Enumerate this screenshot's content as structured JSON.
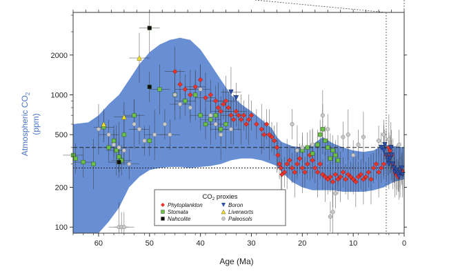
{
  "chart_data": {
    "type": "scatter",
    "title": "",
    "xlabel": "Age (Ma)",
    "ylabel_line1": "Atmospheric CO",
    "ylabel_sub": "2",
    "ylabel_line2": "(ppm)",
    "x_axis_reversed": true,
    "y_scale": "log",
    "xlim": [
      65,
      0
    ],
    "ylim": [
      90,
      4200
    ],
    "x_ticks": [
      {
        "value": 60,
        "label": "60"
      },
      {
        "value": 50,
        "label": "50"
      },
      {
        "value": 40,
        "label": "40"
      },
      {
        "value": 30,
        "label": "30"
      },
      {
        "value": 20,
        "label": "20"
      },
      {
        "value": 10,
        "label": "10"
      },
      {
        "value": 0,
        "label": "0"
      }
    ],
    "y_ticks": [
      {
        "value": 100,
        "label": "100"
      },
      {
        "value": 200,
        "label": "200"
      },
      {
        "value": 500,
        "label": "500"
      },
      {
        "value": 1000,
        "label": "1000"
      },
      {
        "value": 2000,
        "label": "2000"
      }
    ],
    "reference_lines": [
      {
        "value": 400,
        "style": "dashed"
      },
      {
        "value": 280,
        "style": "dotted"
      }
    ],
    "envelope": {
      "x": [
        65,
        62,
        60,
        58,
        56,
        54,
        52,
        50,
        48,
        46,
        44,
        42,
        40,
        38,
        36,
        34,
        32,
        30,
        28,
        26,
        25,
        24,
        22,
        20,
        18,
        16,
        14,
        12,
        10,
        8,
        6,
        4,
        2,
        0
      ],
      "upper": [
        600,
        620,
        700,
        850,
        1000,
        1300,
        1700,
        2100,
        2400,
        2600,
        2700,
        2600,
        2200,
        1700,
        1300,
        1000,
        850,
        750,
        650,
        560,
        480,
        440,
        410,
        400,
        420,
        480,
        430,
        400,
        380,
        370,
        380,
        420,
        410,
        400
      ],
      "lower": [
        90,
        90,
        90,
        110,
        140,
        200,
        240,
        270,
        280,
        285,
        285,
        280,
        285,
        290,
        300,
        320,
        330,
        330,
        320,
        300,
        290,
        260,
        220,
        200,
        190,
        190,
        190,
        185,
        185,
        185,
        190,
        200,
        220,
        230
      ]
    },
    "legend": {
      "title_main": "CO",
      "title_sub": "2",
      "title_rest": " proxies",
      "position": "bottom-center",
      "entries": [
        {
          "label": "Phytoplankton",
          "marker": "diamond",
          "color": "#e8342a"
        },
        {
          "label": "Boron",
          "marker": "triangle-down",
          "color": "#2c4fa8"
        },
        {
          "label": "Stomata",
          "marker": "square",
          "color": "#6cc04a"
        },
        {
          "label": "Liverworts",
          "marker": "triangle-up",
          "color": "#f0e12c"
        },
        {
          "label": "Nahcolite",
          "marker": "square",
          "color": "#111111"
        },
        {
          "label": "Paleosols",
          "marker": "circle",
          "color": "#c8c8c8"
        }
      ]
    },
    "series": [
      {
        "name": "Phytoplankton",
        "marker": "diamond",
        "color": "#e8342a",
        "points": [
          [
            45,
            1500
          ],
          [
            44,
            1200
          ],
          [
            43,
            1100
          ],
          [
            42,
            1000
          ],
          [
            41,
            1150
          ],
          [
            40,
            1300
          ],
          [
            39,
            950
          ],
          [
            38,
            1000
          ],
          [
            37,
            900
          ],
          [
            36.5,
            800
          ],
          [
            36,
            750
          ],
          [
            35.5,
            850
          ],
          [
            35,
            900
          ],
          [
            34.5,
            800
          ],
          [
            34,
            700
          ],
          [
            33.5,
            650
          ],
          [
            33,
            750
          ],
          [
            32.5,
            700
          ],
          [
            32,
            650
          ],
          [
            31.5,
            700
          ],
          [
            31,
            600
          ],
          [
            30.5,
            650
          ],
          [
            30,
            700
          ],
          [
            29,
            600
          ],
          [
            28,
            550
          ],
          [
            27.5,
            500
          ],
          [
            27,
            600
          ],
          [
            26.5,
            500
          ],
          [
            26,
            480
          ],
          [
            25.5,
            450
          ],
          [
            25,
            400
          ],
          [
            24.8,
            350
          ],
          [
            24.5,
            300
          ],
          [
            24.2,
            280
          ],
          [
            24,
            250
          ],
          [
            23.5,
            260
          ],
          [
            23,
            300
          ],
          [
            22.5,
            320
          ],
          [
            22,
            280
          ],
          [
            21.5,
            260
          ],
          [
            21,
            300
          ],
          [
            20.5,
            330
          ],
          [
            20,
            280
          ],
          [
            19.5,
            260
          ],
          [
            19,
            300
          ],
          [
            18.5,
            350
          ],
          [
            18,
            320
          ],
          [
            17.5,
            280
          ],
          [
            17,
            260
          ],
          [
            16.5,
            300
          ],
          [
            16,
            250
          ],
          [
            15.5,
            240
          ],
          [
            15,
            230
          ],
          [
            14.5,
            240
          ],
          [
            14,
            220
          ],
          [
            13.5,
            250
          ],
          [
            13,
            230
          ],
          [
            12.5,
            240
          ],
          [
            12,
            260
          ],
          [
            11.5,
            230
          ],
          [
            11,
            250
          ],
          [
            10.5,
            240
          ],
          [
            10,
            230
          ],
          [
            9.5,
            220
          ],
          [
            9,
            240
          ],
          [
            8.5,
            250
          ],
          [
            8,
            230
          ],
          [
            7.5,
            240
          ],
          [
            7,
            260
          ],
          [
            6.5,
            230
          ],
          [
            6,
            280
          ],
          [
            5.5,
            300
          ],
          [
            5,
            260
          ],
          [
            4.5,
            280
          ],
          [
            4,
            300
          ],
          [
            3.5,
            350
          ],
          [
            3,
            400
          ],
          [
            2.8,
            380
          ],
          [
            2.5,
            350
          ],
          [
            2.2,
            300
          ],
          [
            2,
            280
          ],
          [
            1.8,
            260
          ],
          [
            1.5,
            250
          ],
          [
            1.2,
            240
          ],
          [
            1,
            250
          ],
          [
            0.8,
            260
          ],
          [
            0.5,
            270
          ],
          [
            0.3,
            260
          ]
        ]
      },
      {
        "name": "Boron",
        "marker": "triangle-down",
        "color": "#2c4fa8",
        "points": [
          [
            34,
            1050
          ],
          [
            33,
            950
          ],
          [
            4.5,
            400
          ],
          [
            4,
            380
          ],
          [
            3.5,
            350
          ],
          [
            3.2,
            320
          ],
          [
            3,
            300
          ],
          [
            2.8,
            330
          ],
          [
            2.5,
            350
          ],
          [
            2.2,
            300
          ],
          [
            2,
            280
          ],
          [
            1.8,
            260
          ],
          [
            1.5,
            270
          ],
          [
            1.2,
            250
          ],
          [
            1,
            240
          ],
          [
            0.8,
            260
          ],
          [
            0.5,
            280
          ],
          [
            0.3,
            250
          ],
          [
            2.6,
            400
          ],
          [
            3.8,
            420
          ]
        ]
      },
      {
        "name": "Stomata",
        "marker": "square",
        "color": "#6cc04a",
        "points": [
          [
            65,
            350
          ],
          [
            64.5,
            330
          ],
          [
            63,
            310
          ],
          [
            61,
            300
          ],
          [
            58,
            400
          ],
          [
            57,
            450
          ],
          [
            56.5,
            380
          ],
          [
            56,
            340
          ],
          [
            55.5,
            320
          ],
          [
            55,
            500
          ],
          [
            53,
            700
          ],
          [
            50,
            450
          ],
          [
            48,
            1100
          ],
          [
            45,
            1000
          ],
          [
            43,
            900
          ],
          [
            41,
            1000
          ],
          [
            40,
            700
          ],
          [
            39,
            600
          ],
          [
            38,
            650
          ],
          [
            37,
            700
          ],
          [
            36,
            550
          ],
          [
            35,
            600
          ],
          [
            20,
            380
          ],
          [
            19,
            400
          ],
          [
            18,
            360
          ],
          [
            17,
            420
          ],
          [
            16.5,
            500
          ],
          [
            16,
            550
          ],
          [
            15.5,
            450
          ],
          [
            15,
            400
          ],
          [
            14.5,
            330
          ],
          [
            14,
            380
          ],
          [
            13.5,
            350
          ],
          [
            13,
            320
          ],
          [
            59,
            570
          ]
        ]
      },
      {
        "name": "Liverworts",
        "marker": "triangle-up",
        "color": "#f0e12c",
        "points": [
          [
            52,
            1900
          ],
          [
            59,
            600
          ],
          [
            55,
            680
          ]
        ]
      },
      {
        "name": "Nahcolite",
        "marker": "square",
        "color": "#111111",
        "points": [
          [
            50,
            3200
          ],
          [
            50,
            1150
          ],
          [
            56,
            310
          ]
        ]
      },
      {
        "name": "Paleosols",
        "marker": "circle",
        "color": "#c8c8c8",
        "points": [
          [
            56,
            100
          ],
          [
            55.5,
            100
          ],
          [
            55,
            100
          ],
          [
            60,
            550
          ],
          [
            58,
            500
          ],
          [
            57,
            420
          ],
          [
            56,
            400
          ],
          [
            55,
            380
          ],
          [
            54,
            300
          ],
          [
            53,
            600
          ],
          [
            52,
            550
          ],
          [
            51,
            450
          ],
          [
            49,
            500
          ],
          [
            47,
            600
          ],
          [
            46,
            500
          ],
          [
            45,
            1000
          ],
          [
            44,
            850
          ],
          [
            42,
            800
          ],
          [
            40,
            1100
          ],
          [
            38,
            700
          ],
          [
            37,
            600
          ],
          [
            36,
            500
          ],
          [
            34,
            550
          ],
          [
            22,
            600
          ],
          [
            21,
            380
          ],
          [
            20,
            400
          ],
          [
            18,
            420
          ],
          [
            16,
            700
          ],
          [
            15,
            550
          ],
          [
            14.5,
            120
          ],
          [
            14,
            130
          ],
          [
            13.5,
            180
          ],
          [
            12,
            480
          ],
          [
            11,
            500
          ],
          [
            10,
            350
          ],
          [
            9,
            420
          ],
          [
            8,
            480
          ],
          [
            5,
            450
          ],
          [
            4,
            500
          ],
          [
            3,
            460
          ],
          [
            1,
            420
          ]
        ]
      }
    ]
  }
}
